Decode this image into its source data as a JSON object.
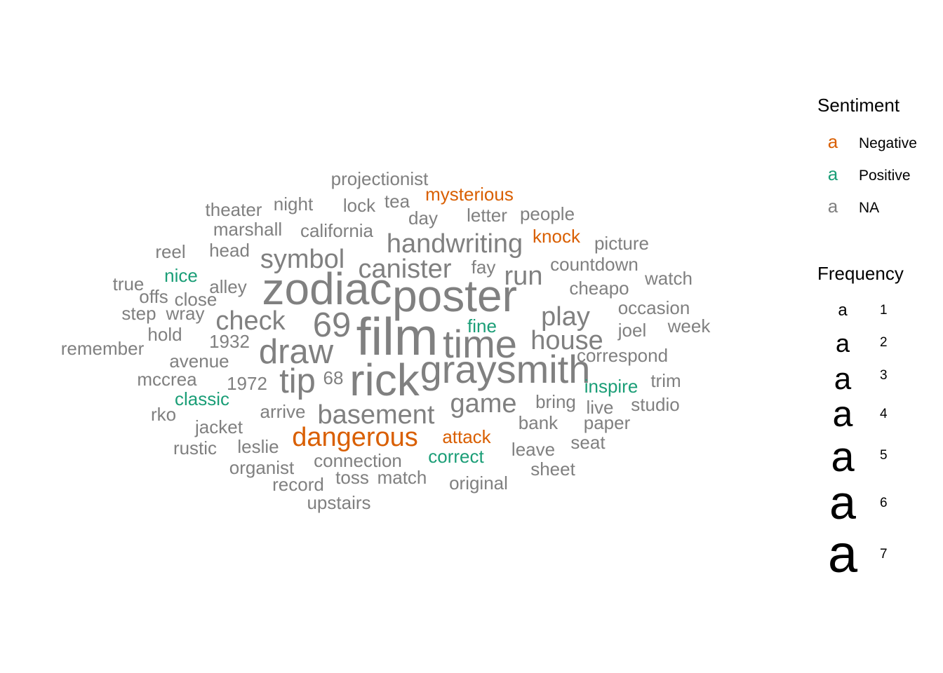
{
  "chart_data": {
    "type": "wordcloud",
    "colors": {
      "Negative": "#D95F02",
      "Positive": "#1B9E77",
      "NA": "#808080"
    },
    "legend": {
      "sentiment_title": "Sentiment",
      "sentiment_glyph": "a",
      "sentiment_entries": [
        {
          "key": "Negative",
          "label": "Negative"
        },
        {
          "key": "Positive",
          "label": "Positive"
        },
        {
          "key": "NA",
          "label": "NA"
        }
      ],
      "frequency_title": "Frequency",
      "frequency_glyph": "a",
      "frequency_entries": [
        "1",
        "2",
        "3",
        "4",
        "5",
        "6",
        "7"
      ]
    },
    "words": [
      {
        "word": "film",
        "freq": 7,
        "sentiment": "NA"
      },
      {
        "word": "rick",
        "freq": 6,
        "sentiment": "NA"
      },
      {
        "word": "zodiac",
        "freq": 6,
        "sentiment": "NA"
      },
      {
        "word": "poster",
        "freq": 6,
        "sentiment": "NA"
      },
      {
        "word": "time",
        "freq": 5,
        "sentiment": "NA"
      },
      {
        "word": "graysmith",
        "freq": 5,
        "sentiment": "NA"
      },
      {
        "word": "69",
        "freq": 4,
        "sentiment": "NA"
      },
      {
        "word": "draw",
        "freq": 4,
        "sentiment": "NA"
      },
      {
        "word": "tip",
        "freq": 4,
        "sentiment": "NA"
      },
      {
        "word": "handwriting",
        "freq": 3,
        "sentiment": "NA"
      },
      {
        "word": "symbol",
        "freq": 3,
        "sentiment": "NA"
      },
      {
        "word": "canister",
        "freq": 3,
        "sentiment": "NA"
      },
      {
        "word": "check",
        "freq": 3,
        "sentiment": "NA"
      },
      {
        "word": "run",
        "freq": 3,
        "sentiment": "NA"
      },
      {
        "word": "play",
        "freq": 3,
        "sentiment": "NA"
      },
      {
        "word": "house",
        "freq": 3,
        "sentiment": "NA"
      },
      {
        "word": "game",
        "freq": 3,
        "sentiment": "NA"
      },
      {
        "word": "basement",
        "freq": 3,
        "sentiment": "NA"
      },
      {
        "word": "dangerous",
        "freq": 3,
        "sentiment": "Negative"
      },
      {
        "word": "projectionist",
        "freq": 2,
        "sentiment": "NA"
      },
      {
        "word": "mysterious",
        "freq": 2,
        "sentiment": "Negative"
      },
      {
        "word": "theater",
        "freq": 2,
        "sentiment": "NA"
      },
      {
        "word": "night",
        "freq": 2,
        "sentiment": "NA"
      },
      {
        "word": "lock",
        "freq": 2,
        "sentiment": "NA"
      },
      {
        "word": "tea",
        "freq": 2,
        "sentiment": "NA"
      },
      {
        "word": "day",
        "freq": 2,
        "sentiment": "NA"
      },
      {
        "word": "letter",
        "freq": 2,
        "sentiment": "NA"
      },
      {
        "word": "people",
        "freq": 2,
        "sentiment": "NA"
      },
      {
        "word": "marshall",
        "freq": 2,
        "sentiment": "NA"
      },
      {
        "word": "california",
        "freq": 2,
        "sentiment": "NA"
      },
      {
        "word": "knock",
        "freq": 2,
        "sentiment": "Negative"
      },
      {
        "word": "reel",
        "freq": 2,
        "sentiment": "NA"
      },
      {
        "word": "head",
        "freq": 2,
        "sentiment": "NA"
      },
      {
        "word": "picture",
        "freq": 2,
        "sentiment": "NA"
      },
      {
        "word": "fay",
        "freq": 2,
        "sentiment": "NA"
      },
      {
        "word": "countdown",
        "freq": 2,
        "sentiment": "NA"
      },
      {
        "word": "nice",
        "freq": 2,
        "sentiment": "Positive"
      },
      {
        "word": "true",
        "freq": 2,
        "sentiment": "NA"
      },
      {
        "word": "alley",
        "freq": 2,
        "sentiment": "NA"
      },
      {
        "word": "cheapo",
        "freq": 2,
        "sentiment": "NA"
      },
      {
        "word": "watch",
        "freq": 2,
        "sentiment": "NA"
      },
      {
        "word": "offs",
        "freq": 2,
        "sentiment": "NA"
      },
      {
        "word": "close",
        "freq": 2,
        "sentiment": "NA"
      },
      {
        "word": "step",
        "freq": 2,
        "sentiment": "NA"
      },
      {
        "word": "wray",
        "freq": 2,
        "sentiment": "NA"
      },
      {
        "word": "occasion",
        "freq": 2,
        "sentiment": "NA"
      },
      {
        "word": "fine",
        "freq": 2,
        "sentiment": "Positive"
      },
      {
        "word": "week",
        "freq": 2,
        "sentiment": "NA"
      },
      {
        "word": "hold",
        "freq": 2,
        "sentiment": "NA"
      },
      {
        "word": "joel",
        "freq": 2,
        "sentiment": "NA"
      },
      {
        "word": "1932",
        "freq": 2,
        "sentiment": "NA"
      },
      {
        "word": "remember",
        "freq": 2,
        "sentiment": "NA"
      },
      {
        "word": "correspond",
        "freq": 2,
        "sentiment": "NA"
      },
      {
        "word": "avenue",
        "freq": 2,
        "sentiment": "NA"
      },
      {
        "word": "68",
        "freq": 2,
        "sentiment": "NA"
      },
      {
        "word": "mccrea",
        "freq": 2,
        "sentiment": "NA"
      },
      {
        "word": "1972",
        "freq": 2,
        "sentiment": "NA"
      },
      {
        "word": "trim",
        "freq": 2,
        "sentiment": "NA"
      },
      {
        "word": "inspire",
        "freq": 2,
        "sentiment": "Positive"
      },
      {
        "word": "classic",
        "freq": 2,
        "sentiment": "Positive"
      },
      {
        "word": "bring",
        "freq": 2,
        "sentiment": "NA"
      },
      {
        "word": "live",
        "freq": 2,
        "sentiment": "NA"
      },
      {
        "word": "studio",
        "freq": 2,
        "sentiment": "NA"
      },
      {
        "word": "rko",
        "freq": 2,
        "sentiment": "NA"
      },
      {
        "word": "arrive",
        "freq": 2,
        "sentiment": "NA"
      },
      {
        "word": "bank",
        "freq": 2,
        "sentiment": "NA"
      },
      {
        "word": "paper",
        "freq": 2,
        "sentiment": "NA"
      },
      {
        "word": "jacket",
        "freq": 2,
        "sentiment": "NA"
      },
      {
        "word": "attack",
        "freq": 2,
        "sentiment": "Negative"
      },
      {
        "word": "rustic",
        "freq": 2,
        "sentiment": "NA"
      },
      {
        "word": "leslie",
        "freq": 2,
        "sentiment": "NA"
      },
      {
        "word": "leave",
        "freq": 2,
        "sentiment": "NA"
      },
      {
        "word": "seat",
        "freq": 2,
        "sentiment": "NA"
      },
      {
        "word": "correct",
        "freq": 2,
        "sentiment": "Positive"
      },
      {
        "word": "connection",
        "freq": 2,
        "sentiment": "NA"
      },
      {
        "word": "organist",
        "freq": 2,
        "sentiment": "NA"
      },
      {
        "word": "sheet",
        "freq": 2,
        "sentiment": "NA"
      },
      {
        "word": "record",
        "freq": 2,
        "sentiment": "NA"
      },
      {
        "word": "toss",
        "freq": 2,
        "sentiment": "NA"
      },
      {
        "word": "match",
        "freq": 2,
        "sentiment": "NA"
      },
      {
        "word": "original",
        "freq": 2,
        "sentiment": "NA"
      },
      {
        "word": "upstairs",
        "freq": 2,
        "sentiment": "NA"
      }
    ]
  }
}
